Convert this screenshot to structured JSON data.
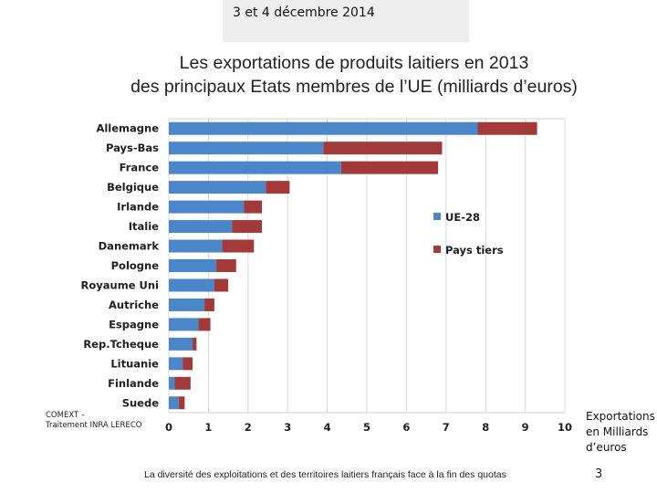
{
  "header": {
    "date": "3 et 4 décembre 2014"
  },
  "slide": {
    "title_line1": "Les exportations de produits laitiers en 2013",
    "title_line2": "des principaux Etats membres de l’UE (milliards d’euros)",
    "source_line1": "COMEXT –",
    "source_line2": "Traitement INRA LERECO",
    "unit_line1": "Exportations",
    "unit_line2": "en Milliards",
    "unit_line3": "d’euros",
    "footer_text": "La diversité des exploitations et des territoires laitiers français face à la fin des quotas",
    "page_number": "3"
  },
  "chart_data": {
    "type": "bar",
    "orientation": "horizontal",
    "stacked": true,
    "title": "Les exportations de produits laitiers en 2013 des principaux Etats membres de l’UE (milliards d’euros)",
    "categories": [
      "Allemagne",
      "Pays-Bas",
      "France",
      "Belgique",
      "Irlande",
      "Italie",
      "Danemark",
      "Pologne",
      "Royaume Uni",
      "Autriche",
      "Espagne",
      "Rep.Tcheque",
      "Lituanie",
      "Finlande",
      "Suede"
    ],
    "series": [
      {
        "name": "UE-28",
        "color": "#4a86c8",
        "values": [
          7.8,
          3.9,
          4.35,
          2.45,
          1.9,
          1.6,
          1.35,
          1.2,
          1.15,
          0.9,
          0.75,
          0.6,
          0.35,
          0.15,
          0.25
        ]
      },
      {
        "name": "Pays tiers",
        "color": "#a33a3a",
        "values": [
          1.5,
          3.0,
          2.45,
          0.6,
          0.45,
          0.75,
          0.8,
          0.5,
          0.35,
          0.25,
          0.3,
          0.1,
          0.25,
          0.4,
          0.15
        ]
      }
    ],
    "xlim": [
      0,
      10
    ],
    "xticks": [
      "0",
      "1",
      "2",
      "3",
      "4",
      "5",
      "6",
      "7",
      "8",
      "9",
      "10"
    ],
    "grid": true,
    "legend": "right"
  }
}
